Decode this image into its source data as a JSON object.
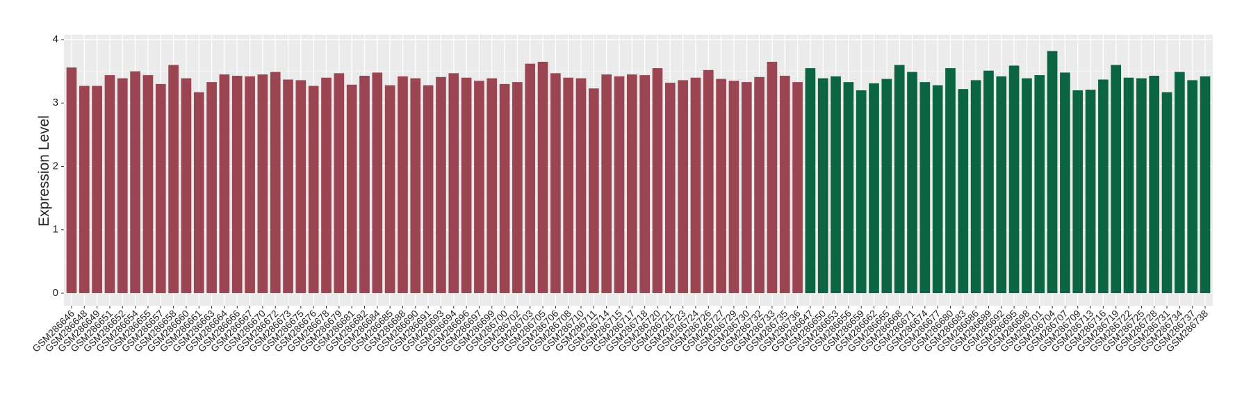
{
  "chart_data": {
    "type": "bar",
    "y_label": "Expression Level",
    "ylim": [
      0,
      4
    ],
    "yticks": [
      0,
      1,
      2,
      3,
      4
    ],
    "grid": true,
    "groups": [
      {
        "color": "#9b4452",
        "categories": [
          "GSM286646",
          "GSM286648",
          "GSM286649",
          "GSM286651",
          "GSM286652",
          "GSM286654",
          "GSM286655",
          "GSM286657",
          "GSM286658",
          "GSM286660",
          "GSM286661",
          "GSM286663",
          "GSM286664",
          "GSM286666",
          "GSM286667",
          "GSM286670",
          "GSM286672",
          "GSM286673",
          "GSM286675",
          "GSM286676",
          "GSM286678",
          "GSM286679",
          "GSM286681",
          "GSM286682",
          "GSM286684",
          "GSM286685",
          "GSM286688",
          "GSM286690",
          "GSM286691",
          "GSM286693",
          "GSM286694",
          "GSM286696",
          "GSM286697",
          "GSM286699",
          "GSM286700",
          "GSM286702",
          "GSM286703",
          "GSM286705",
          "GSM286706",
          "GSM286708",
          "GSM286710",
          "GSM286711",
          "GSM286714",
          "GSM286715",
          "GSM286717",
          "GSM286718",
          "GSM286720",
          "GSM286721",
          "GSM286723",
          "GSM286724",
          "GSM286726",
          "GSM286727",
          "GSM286729",
          "GSM286730",
          "GSM286732",
          "GSM286733",
          "GSM286735",
          "GSM286736"
        ],
        "values": [
          3.56,
          3.27,
          3.27,
          3.44,
          3.39,
          3.5,
          3.44,
          3.3,
          3.6,
          3.39,
          3.17,
          3.33,
          3.45,
          3.43,
          3.42,
          3.45,
          3.49,
          3.37,
          3.36,
          3.27,
          3.4,
          3.47,
          3.29,
          3.43,
          3.48,
          3.28,
          3.42,
          3.39,
          3.28,
          3.41,
          3.47,
          3.4,
          3.35,
          3.39,
          3.3,
          3.33,
          3.62,
          3.65,
          3.47,
          3.4,
          3.39,
          3.23,
          3.45,
          3.42,
          3.45,
          3.44,
          3.55,
          3.32,
          3.36,
          3.4,
          3.52,
          3.38,
          3.35,
          3.33,
          3.41,
          3.65,
          3.43,
          3.33
        ]
      },
      {
        "color": "#0b6543",
        "categories": [
          "GSM286647",
          "GSM286650",
          "GSM286653",
          "GSM286656",
          "GSM286659",
          "GSM286662",
          "GSM286665",
          "GSM286668",
          "GSM286671",
          "GSM286674",
          "GSM286677",
          "GSM286680",
          "GSM286683",
          "GSM286686",
          "GSM286689",
          "GSM286692",
          "GSM286695",
          "GSM286698",
          "GSM286701",
          "GSM286704",
          "GSM286707",
          "GSM286709",
          "GSM286713",
          "GSM286716",
          "GSM286719",
          "GSM286722",
          "GSM286725",
          "GSM286728",
          "GSM286731",
          "GSM286734",
          "GSM286737",
          "GSM286738"
        ],
        "values": [
          3.55,
          3.39,
          3.42,
          3.33,
          3.2,
          3.31,
          3.38,
          3.6,
          3.49,
          3.33,
          3.28,
          3.55,
          3.22,
          3.36,
          3.51,
          3.42,
          3.59,
          3.39,
          3.44,
          3.82,
          3.48,
          3.2,
          3.21,
          3.37,
          3.6,
          3.4,
          3.39,
          3.43,
          3.17,
          3.49,
          3.36,
          3.42
        ]
      }
    ]
  }
}
